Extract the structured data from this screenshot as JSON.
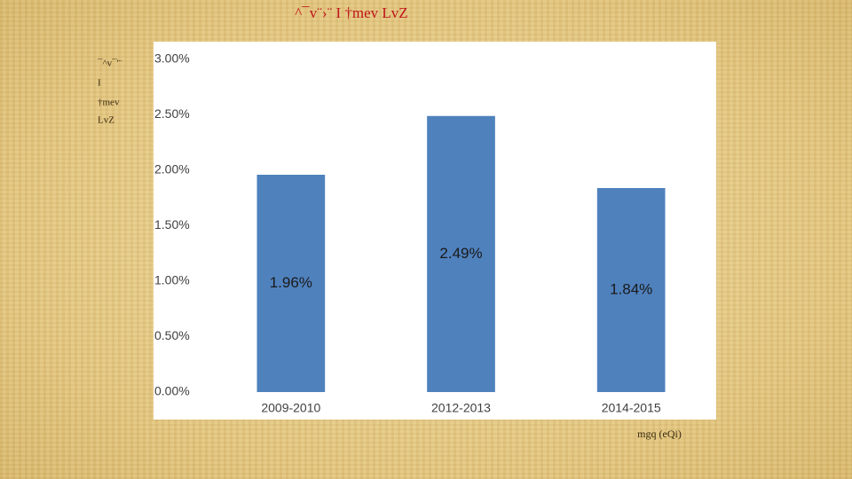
{
  "chart_data": {
    "type": "bar",
    "title": "^¯v¨›¨ I †mev LvZ",
    "y_label_lines": [
      "¯^v¯'¨",
      "I",
      "†mev",
      "LvZ"
    ],
    "x_label": "mgq (eQi)",
    "categories": [
      "2009-2010",
      "2012-2013",
      "2014-2015"
    ],
    "values": [
      1.96,
      2.49,
      1.84
    ],
    "value_labels": [
      "1.96%",
      "2.49%",
      "1.84%"
    ],
    "color": "#4f81bd",
    "ylim": [
      0,
      3
    ],
    "yticks": [
      {
        "value": 0,
        "label": "0.00%"
      },
      {
        "value": 0.5,
        "label": "0.50%"
      },
      {
        "value": 1,
        "label": "1.00%"
      },
      {
        "value": 1.5,
        "label": "1.50%"
      },
      {
        "value": 2,
        "label": "2.00%"
      },
      {
        "value": 2.5,
        "label": "2.50%"
      },
      {
        "value": 3,
        "label": "3.00%"
      }
    ],
    "grid": false
  }
}
